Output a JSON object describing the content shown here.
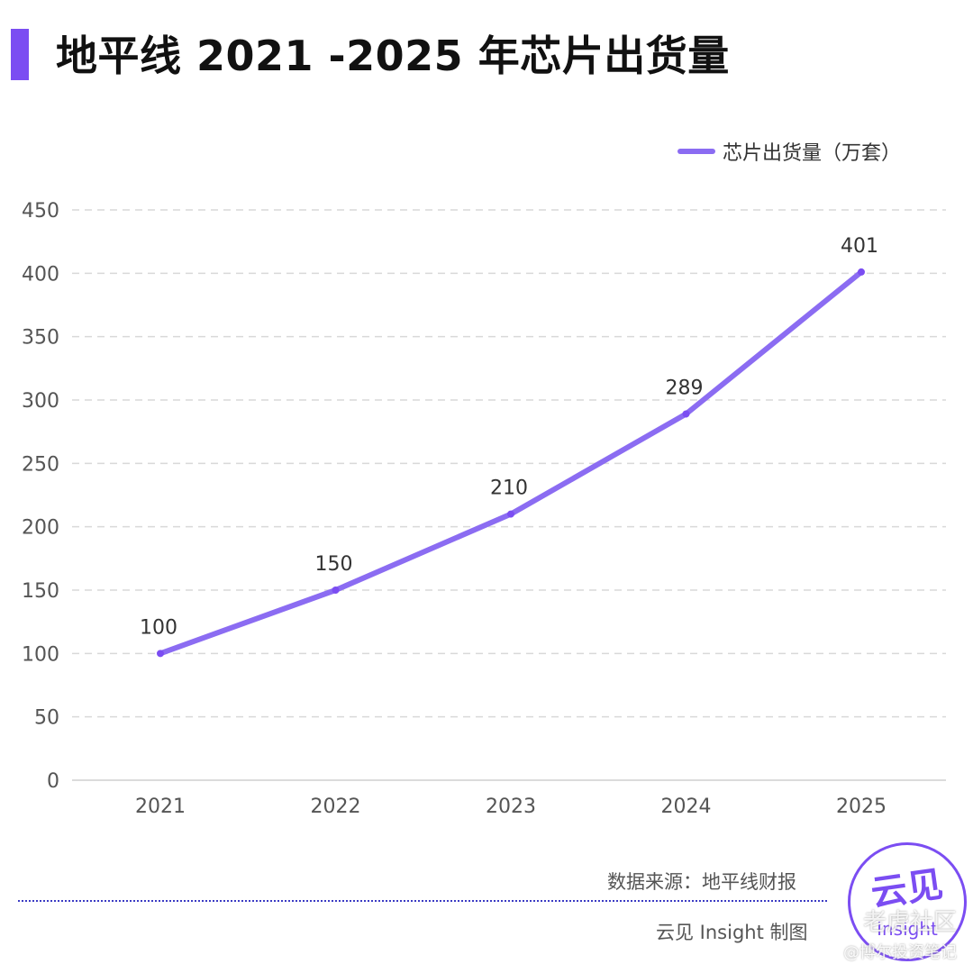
{
  "header": {
    "title": "地平线 2021 -2025 年芯片出货量"
  },
  "legend": {
    "label": "芯片出货量（万套）"
  },
  "footer": {
    "source": "数据来源：地平线财报",
    "credit": "云见 Insight 制图"
  },
  "logo": {
    "cn": "云见",
    "en": "Insight"
  },
  "watermark": {
    "main": "老虎社区",
    "sub": "@博尔投资笔记"
  },
  "colors": {
    "accent": "#7B4DF2",
    "line": "#8B6CF2",
    "grid": "#d9d9d9"
  },
  "chart_data": {
    "type": "line",
    "categories": [
      "2021",
      "2022",
      "2023",
      "2024",
      "2025"
    ],
    "series": [
      {
        "name": "芯片出货量（万套）",
        "values": [
          100,
          150,
          210,
          289,
          401
        ]
      }
    ],
    "ylim": [
      0,
      450
    ],
    "yticks": [
      0,
      50,
      100,
      150,
      200,
      250,
      300,
      350,
      400,
      450
    ],
    "data_labels": [
      "100",
      "150",
      "210",
      "289",
      "401"
    ],
    "grid": true,
    "legend_position": "top-right"
  }
}
